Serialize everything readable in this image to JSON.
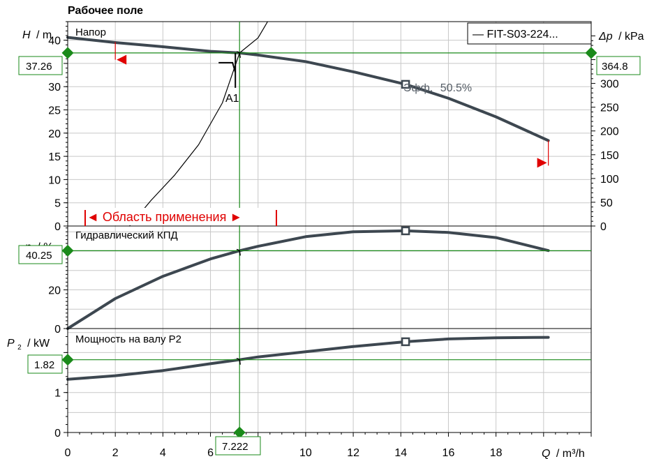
{
  "title": "Рабочее поле",
  "legend": {
    "label": "— FIT-S03-224..."
  },
  "annotations": {
    "range": "◄ Область применения ►",
    "eff": "Эфф.",
    "eff_value": "50.5%",
    "point_label": "A1"
  },
  "readouts": {
    "head": "37.26",
    "pressure": "364.8",
    "efficiency": "40.25",
    "power": "1.82",
    "flow": "7.222"
  },
  "colors": {
    "curve": "#3d4750",
    "grid": "#c8c8c8",
    "marker": "#1a8a1a",
    "red": "#e00000"
  },
  "chart_data": [
    {
      "type": "line",
      "title": "Напор",
      "ylabel_symbol": "H",
      "ylabel_unit": "/ m",
      "y2label_symbol": "Δp",
      "y2label_unit": "/ kPa",
      "xlim": [
        0,
        22
      ],
      "ylim": [
        0,
        44
      ],
      "y2lim": [
        0,
        430
      ],
      "yticks": [
        0,
        5,
        10,
        15,
        20,
        25,
        30,
        35,
        40
      ],
      "ytick_labels": [
        "0",
        "5",
        "10",
        "15",
        "20",
        "25",
        "30",
        "",
        "40"
      ],
      "y2ticks": [
        0,
        50,
        100,
        150,
        200,
        250,
        300
      ],
      "series": [
        {
          "name": "FIT-S03-224...",
          "x": [
            0,
            2,
            4,
            6,
            7.222,
            8,
            10,
            12,
            14.2,
            16,
            18,
            20.2
          ],
          "y": [
            40.6,
            39.5,
            38.6,
            37.6,
            37.26,
            36.8,
            35.4,
            33.2,
            30.5,
            27.5,
            23.5,
            18.4
          ]
        },
        {
          "name": "",
          "x": [
            2.6,
            3.5,
            4.5,
            5.5,
            6.5,
            7.222,
            8,
            8.4
          ],
          "y": [
            0,
            5.5,
            11,
            17.5,
            26.5,
            37.26,
            40.5,
            44
          ]
        }
      ],
      "markers": [
        {
          "x": 14.2,
          "y": 30.5,
          "label": "Эфф. 50.5%"
        }
      ],
      "operating_point": {
        "x": 7.222,
        "y": 37.26,
        "label": "A1"
      },
      "range_min": 2,
      "range_max": 20.2
    },
    {
      "type": "line",
      "title": "Гидравлический КПД",
      "ylabel_symbol": "η",
      "ylabel_unit": "/ %",
      "xlim": [
        0,
        22
      ],
      "ylim": [
        0,
        53
      ],
      "yticks": [
        0,
        20,
        40
      ],
      "ytick_labels": [
        "0",
        "20",
        ""
      ],
      "series": [
        {
          "name": "FIT-S03-224...",
          "x": [
            0,
            2,
            4,
            6,
            7.222,
            8,
            10,
            12,
            14.2,
            16,
            18,
            20.2
          ],
          "y": [
            0,
            15.5,
            27,
            36,
            40.25,
            42.5,
            47.5,
            50,
            50.5,
            49.7,
            47,
            40.3
          ]
        }
      ],
      "markers": [
        {
          "x": 14.2,
          "y": 50.5
        }
      ],
      "operating_point": {
        "x": 7.222,
        "y": 40.25
      }
    },
    {
      "type": "line",
      "title": "Мощность на валу P2",
      "ylabel_symbol": "P",
      "ylabel_sub": "2",
      "ylabel_unit": "/ kW",
      "xlabel_symbol": "Q",
      "xlabel_unit": "/ m³/h",
      "xlim": [
        0,
        22
      ],
      "ylim": [
        0,
        2.6
      ],
      "yticks": [
        0,
        1,
        2
      ],
      "ytick_labels": [
        "0",
        "1",
        ""
      ],
      "xticks": [
        0,
        2,
        4,
        6,
        8,
        10,
        12,
        14,
        16,
        18
      ],
      "xtick_labels": [
        "0",
        "2",
        "4",
        "6",
        "",
        "10",
        "12",
        "14",
        "16",
        "18"
      ],
      "series": [
        {
          "name": "FIT-S03-224...",
          "x": [
            0,
            2,
            4,
            6,
            7.222,
            8,
            10,
            12,
            14.2,
            16,
            18,
            20.2
          ],
          "y": [
            1.33,
            1.42,
            1.55,
            1.72,
            1.82,
            1.89,
            2.02,
            2.15,
            2.27,
            2.34,
            2.37,
            2.38
          ]
        }
      ],
      "markers": [
        {
          "x": 14.2,
          "y": 2.27
        }
      ],
      "operating_point": {
        "x": 7.222,
        "y": 1.82
      }
    }
  ]
}
